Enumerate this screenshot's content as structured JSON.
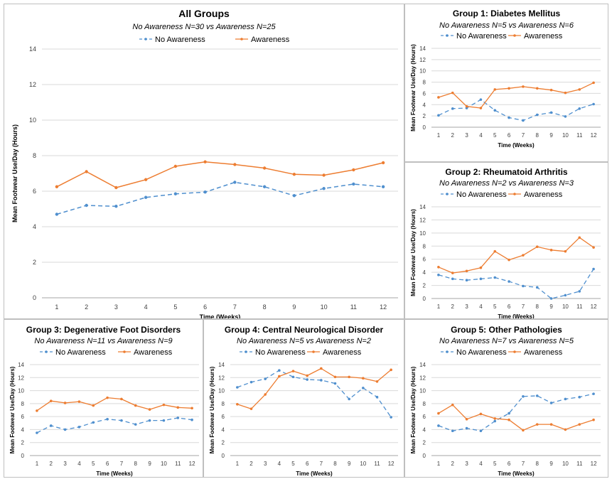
{
  "colors": {
    "no_awareness": "#4f8fce",
    "awareness": "#ed7d31"
  },
  "chart_data": [
    {
      "type": "line",
      "title": "All Groups",
      "subtitle": "No Awareness N=30 vs Awareness N=25",
      "xlabel": "Time (Weeks)",
      "ylabel": "Mean Footwear Use/Day (Hours)",
      "x": [
        1,
        2,
        3,
        4,
        5,
        6,
        7,
        8,
        9,
        10,
        11,
        12
      ],
      "ylim": [
        0,
        14
      ],
      "yticks": [
        0,
        2,
        4,
        6,
        8,
        10,
        12,
        14
      ],
      "grid": true,
      "legend": "top",
      "series": [
        {
          "name": "No Awareness",
          "style": "dashed",
          "values": [
            4.7,
            5.2,
            5.15,
            5.65,
            5.85,
            5.95,
            6.5,
            6.25,
            5.75,
            6.15,
            6.4,
            6.25
          ]
        },
        {
          "name": "Awareness",
          "style": "solid",
          "values": [
            6.25,
            7.1,
            6.2,
            6.65,
            7.4,
            7.65,
            7.5,
            7.3,
            6.95,
            6.9,
            7.2,
            7.6
          ]
        }
      ]
    },
    {
      "type": "line",
      "title": "Group 1: Diabetes Mellitus",
      "subtitle": "No Awareness N=5 vs Awareness N=6",
      "xlabel": "Time (Weeks)",
      "ylabel": "Mean Footwear Use/Day (Hours)",
      "x": [
        1,
        2,
        3,
        4,
        5,
        6,
        7,
        8,
        9,
        10,
        11,
        12
      ],
      "ylim": [
        0,
        14
      ],
      "yticks": [
        0,
        2,
        4,
        6,
        8,
        10,
        12,
        14
      ],
      "grid": true,
      "legend": "top",
      "series": [
        {
          "name": "No Awareness",
          "style": "dashed",
          "values": [
            2.1,
            3.3,
            3.4,
            4.9,
            3.0,
            1.7,
            1.2,
            2.2,
            2.6,
            1.9,
            3.3,
            4.1
          ]
        },
        {
          "name": "Awareness",
          "style": "solid",
          "values": [
            5.3,
            6.1,
            3.7,
            3.4,
            6.7,
            6.9,
            7.2,
            6.9,
            6.6,
            6.1,
            6.7,
            7.9
          ]
        }
      ]
    },
    {
      "type": "line",
      "title": "Group 2: Rheumatoid Arthritis",
      "subtitle": "No Awareness N=2 vs Awareness N=3",
      "xlabel": "Time (Weeks)",
      "ylabel": "Mean Footwear Use/Day (Hours)",
      "x": [
        1,
        2,
        3,
        4,
        5,
        6,
        7,
        8,
        9,
        10,
        11,
        12
      ],
      "ylim": [
        0,
        14
      ],
      "yticks": [
        0,
        2,
        4,
        6,
        8,
        10,
        12,
        14
      ],
      "grid": true,
      "legend": "top",
      "series": [
        {
          "name": "No Awareness",
          "style": "dashed",
          "values": [
            3.6,
            3.0,
            2.8,
            3.0,
            3.2,
            2.6,
            1.9,
            1.7,
            0.0,
            0.5,
            1.1,
            4.5
          ]
        },
        {
          "name": "Awareness",
          "style": "solid",
          "values": [
            4.8,
            3.9,
            4.2,
            4.7,
            7.2,
            5.9,
            6.6,
            7.9,
            7.4,
            7.2,
            9.3,
            7.8
          ]
        }
      ]
    },
    {
      "type": "line",
      "title": "Group 3: Degenerative Foot Disorders",
      "subtitle": "No Awareness N=11 vs Awareness N=9",
      "xlabel": "Time (Weeks)",
      "ylabel": "Mean Footwear Use/Day (Hours)",
      "x": [
        1,
        2,
        3,
        4,
        5,
        6,
        7,
        8,
        9,
        10,
        11,
        12
      ],
      "ylim": [
        0,
        14
      ],
      "yticks": [
        0,
        2,
        4,
        6,
        8,
        10,
        12,
        14
      ],
      "grid": true,
      "legend": "top",
      "series": [
        {
          "name": "No Awareness",
          "style": "dashed",
          "values": [
            3.5,
            4.6,
            4.0,
            4.4,
            5.1,
            5.6,
            5.4,
            4.8,
            5.4,
            5.4,
            5.8,
            5.5
          ]
        },
        {
          "name": "Awareness",
          "style": "solid",
          "values": [
            6.9,
            8.4,
            8.1,
            8.3,
            7.7,
            8.9,
            8.7,
            7.7,
            7.1,
            7.8,
            7.4,
            7.3
          ]
        }
      ]
    },
    {
      "type": "line",
      "title": "Group 4: Central Neurological Disorder",
      "subtitle": "No Awareness N=5 vs Awareness N=2",
      "xlabel": "Time (Weeks)",
      "ylabel": "Mean Footwear Use/Day (Hours)",
      "x": [
        1,
        2,
        3,
        4,
        5,
        6,
        7,
        8,
        9,
        10,
        11,
        12
      ],
      "ylim": [
        0,
        14
      ],
      "yticks": [
        0,
        2,
        4,
        6,
        8,
        10,
        12,
        14
      ],
      "grid": true,
      "legend": "top",
      "series": [
        {
          "name": "No Awareness",
          "style": "dashed",
          "values": [
            10.5,
            11.3,
            11.8,
            13.1,
            12.1,
            11.7,
            11.6,
            11.1,
            8.7,
            10.4,
            9.0,
            5.9
          ]
        },
        {
          "name": "Awareness",
          "style": "solid",
          "values": [
            7.9,
            7.2,
            9.4,
            12.2,
            13.0,
            12.3,
            13.4,
            12.1,
            12.1,
            11.9,
            11.4,
            13.2
          ]
        }
      ]
    },
    {
      "type": "line",
      "title": "Group 5: Other Pathologies",
      "subtitle": "No Awareness N=7 vs Awareness N=5",
      "xlabel": "Time (Weeks)",
      "ylabel": "Mean Footwear Use/Day (Hours)",
      "x": [
        1,
        2,
        3,
        4,
        5,
        6,
        7,
        8,
        9,
        10,
        11,
        12
      ],
      "ylim": [
        0,
        14
      ],
      "yticks": [
        0,
        2,
        4,
        6,
        8,
        10,
        12,
        14
      ],
      "grid": true,
      "legend": "top",
      "series": [
        {
          "name": "No Awareness",
          "style": "dashed",
          "values": [
            4.6,
            3.8,
            4.2,
            3.8,
            5.3,
            6.5,
            9.1,
            9.2,
            8.1,
            8.7,
            9.0,
            9.5
          ]
        },
        {
          "name": "Awareness",
          "style": "solid",
          "values": [
            6.5,
            7.8,
            5.6,
            6.4,
            5.7,
            5.5,
            3.9,
            4.8,
            4.8,
            4.0,
            4.8,
            5.5
          ]
        }
      ]
    }
  ]
}
